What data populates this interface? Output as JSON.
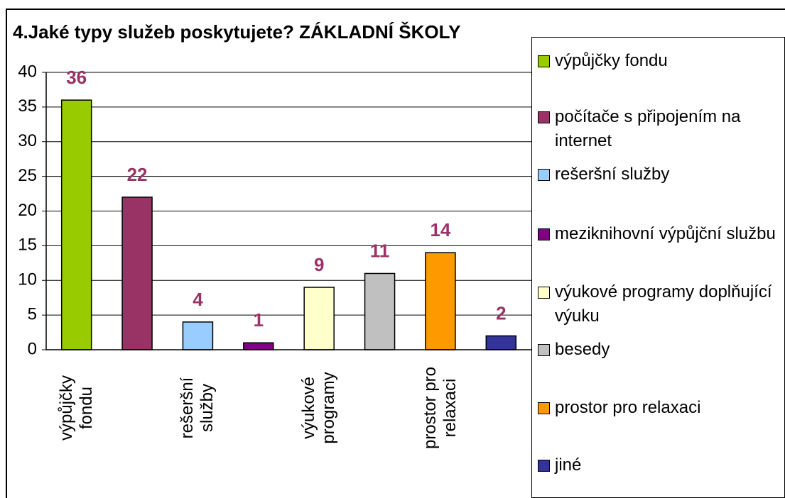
{
  "chart_data": {
    "type": "bar",
    "title": "4.Jaké typy služeb poskytujete? ZÁKLADNÍ ŠKOLY",
    "categories": [
      "výpůjčky fondu",
      null,
      "rešeršní služby",
      null,
      "výukové programy",
      null,
      "prostor pro relaxaci",
      null
    ],
    "values": [
      36,
      22,
      4,
      1,
      9,
      11,
      14,
      2
    ],
    "colors": [
      "#99cc00",
      "#993366",
      "#99ccff",
      "#800080",
      "#ffffcc",
      "#c0c0c0",
      "#ff9900",
      "#333399"
    ],
    "legend": [
      "výpůjčky fondu",
      "počítače s připojením na internet",
      "rešeršní služby",
      "meziknihovní výpůjční službu",
      "výukové programy doplňující výuku",
      "besedy",
      "prostor pro relaxaci",
      "jiné"
    ],
    "ylim": [
      0,
      40
    ],
    "yticks": [
      0,
      5,
      10,
      15,
      20,
      25,
      30,
      35,
      40
    ],
    "grid": true,
    "value_label_color": "#993366"
  }
}
